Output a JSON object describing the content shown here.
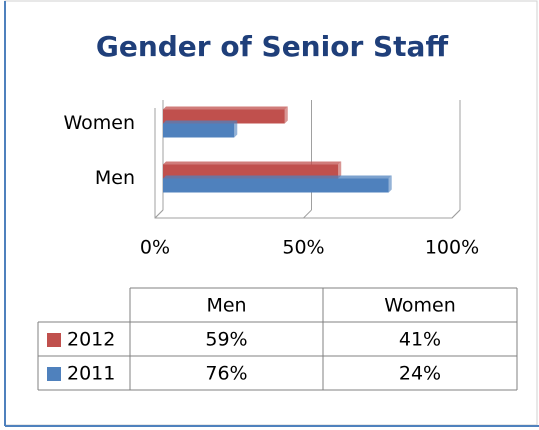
{
  "chart_data": {
    "type": "bar",
    "orientation": "horizontal",
    "title": "Gender of Senior Staff",
    "categories": [
      "Men",
      "Women"
    ],
    "series": [
      {
        "name": "2012",
        "color": "#c0504d",
        "values": [
          59,
          41
        ],
        "value_labels": [
          "59%",
          "41%"
        ]
      },
      {
        "name": "2011",
        "color": "#4f81bd",
        "values": [
          76,
          24
        ],
        "value_labels": [
          "76%",
          "24%"
        ]
      }
    ],
    "xlim": [
      0,
      100
    ],
    "xticks": [
      {
        "value": 0,
        "label": "0%"
      },
      {
        "value": 50,
        "label": "50%"
      },
      {
        "value": 100,
        "label": "100%"
      }
    ],
    "grid": true,
    "data_table": true
  }
}
